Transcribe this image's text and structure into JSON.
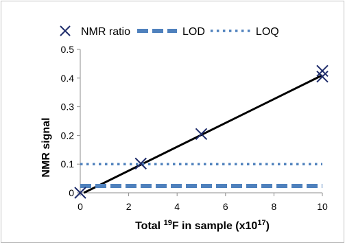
{
  "chart_data": {
    "type": "scatter",
    "xlabel": {
      "pre": "Total ",
      "sup1": "19",
      "mid": "F in sample (x10",
      "sup2": "17",
      "post": ")"
    },
    "ylabel": "NMR signal",
    "xlim": [
      0,
      10
    ],
    "ylim": [
      0,
      0.5
    ],
    "xticks": [
      "0",
      "2",
      "4",
      "6",
      "8",
      "10"
    ],
    "yticks": [
      "0",
      "0.1",
      "0.2",
      "0.3",
      "0.4",
      "0.5"
    ],
    "grid": false,
    "legend_position": "top",
    "series": [
      {
        "name": "NMR ratio",
        "kind": "markers",
        "marker": "x",
        "color": "#1f2d6b",
        "points": [
          [
            0,
            0.0
          ],
          [
            2.5,
            0.102
          ],
          [
            5,
            0.205
          ],
          [
            10,
            0.405
          ],
          [
            10,
            0.425
          ]
        ]
      },
      {
        "name": "",
        "kind": "trendline",
        "color": "#000000",
        "points": [
          [
            0.15,
            0.0
          ],
          [
            10,
            0.41
          ]
        ]
      },
      {
        "name": "LOD",
        "kind": "line",
        "style": "dashed",
        "color": "#4f81bd",
        "points": [
          [
            0,
            0.024
          ],
          [
            10,
            0.024
          ]
        ]
      },
      {
        "name": "LOQ",
        "kind": "line",
        "style": "dotted",
        "color": "#4f81bd",
        "points": [
          [
            0,
            0.1
          ],
          [
            10,
            0.1
          ]
        ]
      }
    ]
  }
}
